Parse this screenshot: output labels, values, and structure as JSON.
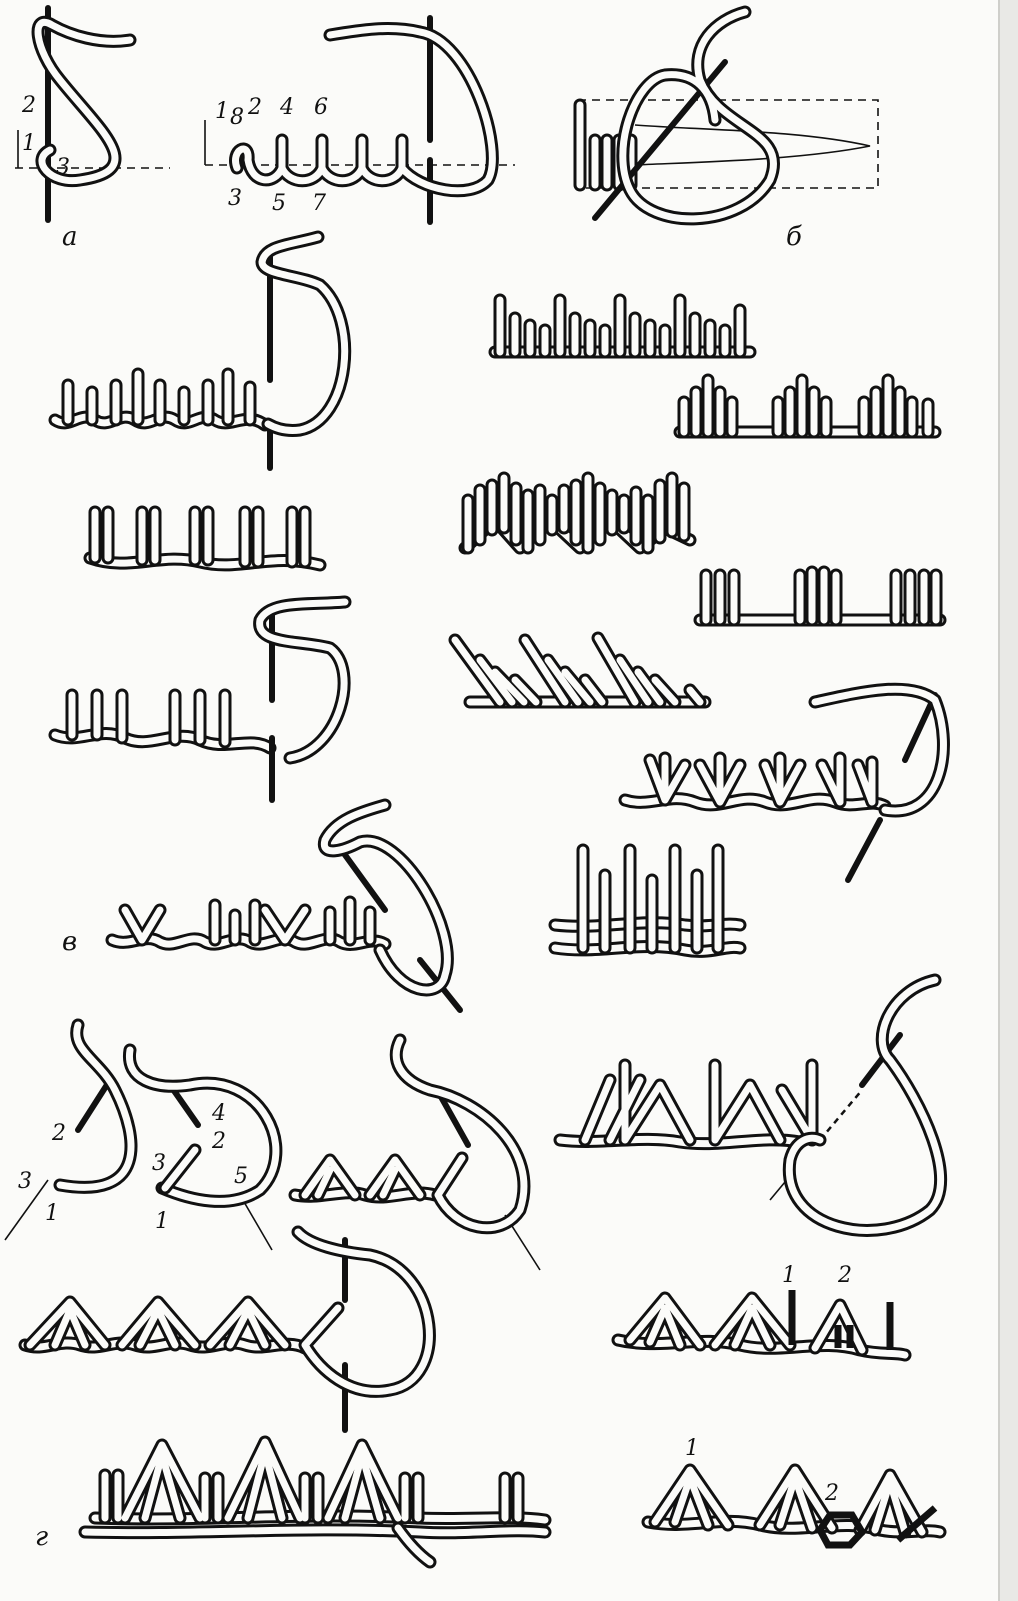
{
  "panels": {
    "a": {
      "letter": "а",
      "numbers": [
        "2",
        "1",
        "3"
      ]
    },
    "a2": {
      "numbers": [
        "1",
        "8",
        "2",
        "4",
        "6",
        "3",
        "5",
        "7"
      ]
    },
    "b": {
      "letter": "б"
    },
    "v": {
      "letter": "в"
    },
    "g": {
      "letter": "г",
      "numbers_step1": [
        "2",
        "3",
        "1"
      ],
      "numbers_step2": [
        "4",
        "2",
        "3",
        "5",
        "1"
      ]
    },
    "g_right": {
      "numbers_upper": [
        "1",
        "2"
      ],
      "numbers_lower": [
        "1",
        "2"
      ]
    }
  }
}
